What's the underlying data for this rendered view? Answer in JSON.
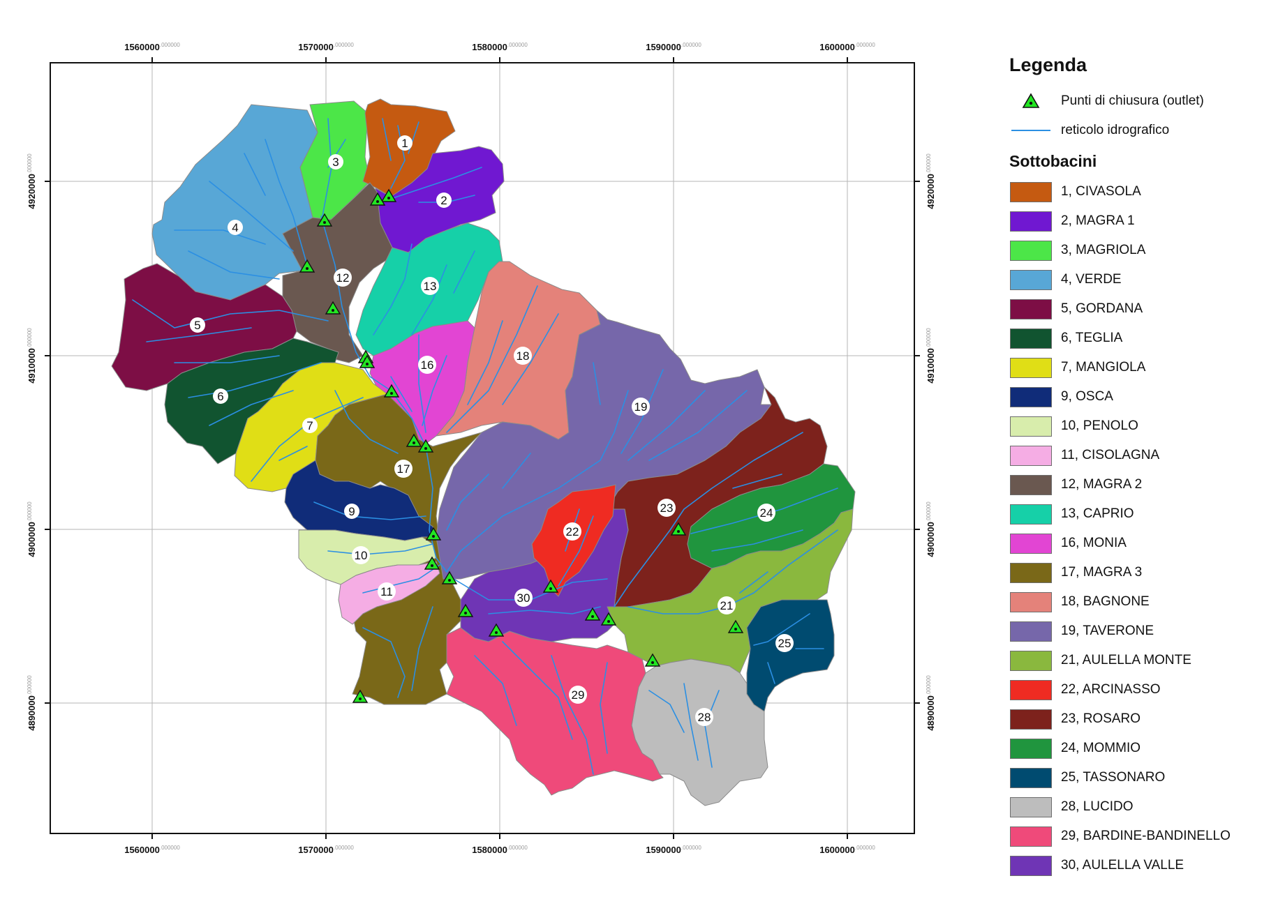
{
  "map": {
    "x_ticks": [
      {
        "main": "1560000",
        "frac": ".000000"
      },
      {
        "main": "1570000",
        "frac": ".000000"
      },
      {
        "main": "1580000",
        "frac": ".000000"
      },
      {
        "main": "1590000",
        "frac": ".000000"
      },
      {
        "main": "1600000",
        "frac": ".000000"
      }
    ],
    "y_ticks": [
      {
        "main": "4920000",
        "frac": ".000000"
      },
      {
        "main": "4910000",
        "frac": ".000000"
      },
      {
        "main": "4900000",
        "frac": ".000000"
      },
      {
        "main": "4890000",
        "frac": ".000000"
      }
    ],
    "colors": {
      "stream": "#2b8fe3",
      "outlet_fill": "#22e622",
      "frame": "#111111",
      "grid": "#b5b5b5",
      "border": "#8a8a8a"
    }
  },
  "legend": {
    "title": "Legenda",
    "outlet_label": "Punti di chiusura (outlet)",
    "stream_label": "reticolo idrografico",
    "subbasins_title": "Sottobacini",
    "subbasins": [
      {
        "label": "1, CIVASOLA",
        "color": "#c55a11"
      },
      {
        "label": "2, MAGRA 1",
        "color": "#7018d1"
      },
      {
        "label": "3, MAGRIOLA",
        "color": "#4ce648"
      },
      {
        "label": "4, VERDE",
        "color": "#58a7d6"
      },
      {
        "label": "5, GORDANA",
        "color": "#7d0e45"
      },
      {
        "label": "6, TEGLIA",
        "color": "#115430"
      },
      {
        "label": "7, MANGIOLA",
        "color": "#e0de16"
      },
      {
        "label": "9, OSCA",
        "color": "#102c79"
      },
      {
        "label": "10, PENOLO",
        "color": "#d8edac"
      },
      {
        "label": "11, CISOLAGNA",
        "color": "#f5ade4"
      },
      {
        "label": "12, MAGRA 2",
        "color": "#6a5850"
      },
      {
        "label": "13, CAPRIO",
        "color": "#16d0a8"
      },
      {
        "label": "16, MONIA",
        "color": "#e245d3"
      },
      {
        "label": "17, MAGRA 3",
        "color": "#7a6818"
      },
      {
        "label": "18, BAGNONE",
        "color": "#e4827a"
      },
      {
        "label": "19, TAVERONE",
        "color": "#7667aa"
      },
      {
        "label": "21, AULELLA MONTE",
        "color": "#8ab83e"
      },
      {
        "label": "22, ARCINASSO",
        "color": "#ef2b22"
      },
      {
        "label": "23, ROSARO",
        "color": "#7d221c"
      },
      {
        "label": "24, MOMMIO",
        "color": "#20953e"
      },
      {
        "label": "25, TASSONARO",
        "color": "#004b70"
      },
      {
        "label": "28, LUCIDO",
        "color": "#bdbdbd"
      },
      {
        "label": "29, BARDINE-BANDINELLO",
        "color": "#ef4a7a"
      },
      {
        "label": "30, AULELLA VALLE",
        "color": "#6f35b5"
      }
    ]
  },
  "basins": [
    {
      "id": "4",
      "label": "4",
      "color": "#58a7d6"
    },
    {
      "id": "3",
      "label": "3",
      "color": "#4ce648"
    },
    {
      "id": "1",
      "label": "1",
      "color": "#c55a11"
    },
    {
      "id": "2",
      "label": "2",
      "color": "#7018d1"
    },
    {
      "id": "12",
      "label": "12",
      "color": "#6a5850"
    },
    {
      "id": "5",
      "label": "5",
      "color": "#7d0e45"
    },
    {
      "id": "13",
      "label": "13",
      "color": "#16d0a8"
    },
    {
      "id": "18",
      "label": "18",
      "color": "#e4827a"
    },
    {
      "id": "16",
      "label": "16",
      "color": "#e245d3"
    },
    {
      "id": "6",
      "label": "6",
      "color": "#115430"
    },
    {
      "id": "7",
      "label": "7",
      "color": "#e0de16"
    },
    {
      "id": "17",
      "label": "17",
      "color": "#7a6818"
    },
    {
      "id": "9",
      "label": "9",
      "color": "#102c79"
    },
    {
      "id": "10",
      "label": "10",
      "color": "#d8edac"
    },
    {
      "id": "11",
      "label": "11",
      "color": "#f5ade4"
    },
    {
      "id": "19",
      "label": "19",
      "color": "#7667aa"
    },
    {
      "id": "23",
      "label": "23",
      "color": "#7d221c"
    },
    {
      "id": "24",
      "label": "24",
      "color": "#20953e"
    },
    {
      "id": "21",
      "label": "21",
      "color": "#8ab83e"
    },
    {
      "id": "25",
      "label": "25",
      "color": "#004b70"
    },
    {
      "id": "28",
      "label": "28",
      "color": "#bdbdbd"
    },
    {
      "id": "29",
      "label": "29",
      "color": "#ef4a7a"
    },
    {
      "id": "30",
      "label": "30",
      "color": "#6f35b5"
    },
    {
      "id": "22",
      "label": "22",
      "color": "#ef2b22"
    }
  ]
}
